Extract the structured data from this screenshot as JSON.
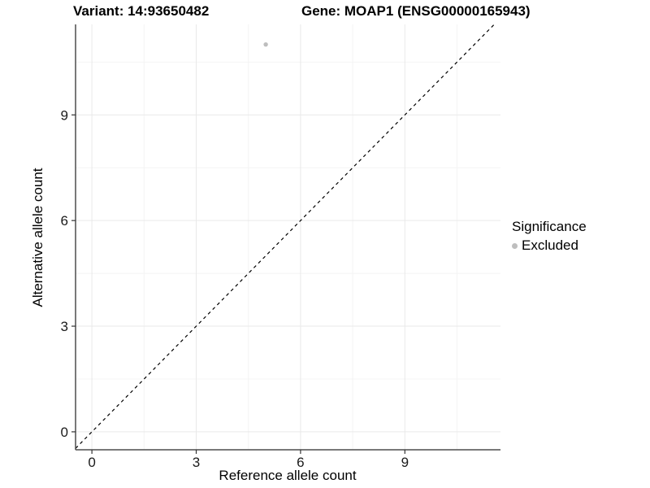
{
  "chart_data": {
    "type": "scatter",
    "title_left": "Variant: 14:93650482",
    "title_right": "Gene: MOAP1 (ENSG00000165943)",
    "xlabel": "Reference allele count",
    "ylabel": "Alternative allele count",
    "xlim": [
      -0.47,
      11.75
    ],
    "ylim": [
      -0.51,
      11.57
    ],
    "xticks": [
      0,
      3,
      6,
      9
    ],
    "yticks": [
      0,
      3,
      6,
      9
    ],
    "xticks_minor": [
      1.5,
      4.5,
      7.5,
      10.5
    ],
    "yticks_minor": [
      1.5,
      4.5,
      7.5,
      10.5
    ],
    "grid": true,
    "legend_position": "right",
    "identity_line": {
      "type": "abline",
      "slope": 1,
      "intercept": 0,
      "style": "dashed",
      "color": "#000000"
    },
    "series": [
      {
        "name": "Excluded",
        "color": "#bebebe",
        "points": [
          {
            "x": 5,
            "y": 11
          }
        ]
      }
    ],
    "legend": {
      "title": "Significance",
      "items": [
        {
          "label": "Excluded",
          "color": "#bebebe"
        }
      ]
    },
    "colors": {
      "background": "#ffffff",
      "grid_major": "#e9e9e9",
      "grid_minor": "#f4f4f4",
      "axis_line": "#4d4d4d",
      "tick_mark": "#333333",
      "tick_label": "#1a1a1a",
      "point": "#bebebe",
      "dashed_line": "#000000"
    }
  }
}
